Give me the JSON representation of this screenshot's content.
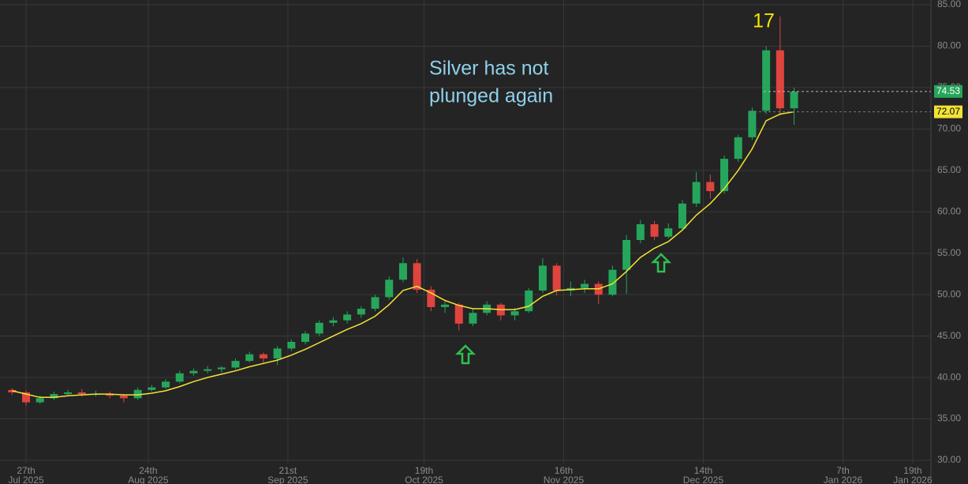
{
  "chart_data": {
    "type": "candlestick",
    "x": [
      -2,
      0,
      2,
      4,
      6,
      8,
      10,
      12,
      14,
      16,
      18,
      20,
      22,
      24,
      26,
      28,
      30,
      32,
      34,
      36,
      38,
      40,
      42,
      44,
      46,
      48,
      50,
      52,
      54,
      56,
      58,
      60,
      62,
      64,
      66,
      68,
      70,
      72,
      74,
      76,
      78,
      80,
      82,
      84,
      86,
      88,
      90,
      92,
      94,
      96,
      98,
      100,
      102,
      104,
      106,
      108,
      110
    ],
    "open": [
      38.5,
      38.2,
      37.0,
      37.5,
      38.0,
      38.2,
      37.9,
      38.0,
      37.8,
      37.5,
      38.5,
      38.8,
      39.5,
      40.5,
      40.8,
      41.0,
      41.2,
      42.0,
      42.8,
      42.3,
      43.5,
      44.3,
      45.3,
      46.6,
      46.9,
      47.6,
      48.3,
      49.7,
      51.8,
      53.8,
      50.6,
      48.5,
      48.8,
      46.5,
      47.8,
      48.8,
      47.5,
      48.0,
      50.5,
      53.5,
      50.5,
      50.8,
      51.3,
      50.0,
      53.0,
      56.6,
      58.5,
      57.0,
      58.0,
      61.0,
      63.6,
      62.5,
      66.4,
      69.0,
      72.2,
      79.5,
      72.5
    ],
    "high": [
      38.7,
      38.4,
      37.8,
      38.3,
      38.5,
      38.6,
      38.4,
      38.3,
      38.0,
      38.8,
      39.1,
      39.8,
      40.8,
      41.1,
      41.4,
      41.4,
      42.3,
      43.1,
      43.0,
      43.8,
      44.6,
      45.6,
      46.9,
      47.3,
      48.0,
      48.6,
      50.0,
      52.2,
      54.5,
      54.3,
      51.0,
      49.2,
      49.0,
      48.2,
      49.2,
      49.0,
      48.4,
      50.8,
      54.4,
      53.8,
      51.6,
      51.8,
      51.6,
      53.5,
      57.2,
      59.0,
      58.9,
      58.6,
      61.4,
      64.8,
      64.5,
      66.8,
      69.3,
      72.6,
      80.0,
      83.6,
      75.0
    ],
    "low": [
      37.9,
      36.6,
      36.8,
      37.3,
      37.8,
      37.7,
      37.7,
      37.5,
      37.0,
      37.3,
      38.3,
      38.6,
      39.3,
      40.2,
      40.5,
      40.6,
      41.0,
      41.8,
      41.6,
      41.5,
      43.2,
      44.0,
      45.0,
      46.2,
      46.5,
      47.2,
      48.0,
      49.4,
      51.5,
      50.2,
      48.0,
      47.8,
      45.7,
      46.2,
      47.5,
      46.9,
      46.9,
      47.8,
      50.2,
      49.9,
      49.8,
      50.2,
      48.9,
      49.8,
      50.1,
      56.2,
      56.6,
      56.8,
      57.8,
      60.6,
      61.6,
      62.2,
      66.0,
      68.7,
      71.8,
      71.6,
      70.5
    ],
    "close": [
      38.2,
      37.0,
      37.5,
      38.0,
      38.2,
      38.0,
      38.0,
      37.8,
      37.5,
      38.5,
      38.8,
      39.5,
      40.5,
      40.8,
      41.0,
      41.2,
      42.0,
      42.8,
      42.3,
      43.5,
      44.3,
      45.3,
      46.6,
      46.9,
      47.6,
      48.3,
      49.7,
      51.8,
      53.8,
      50.6,
      48.5,
      48.8,
      46.5,
      47.8,
      48.8,
      47.5,
      48.0,
      50.5,
      53.5,
      50.5,
      50.8,
      51.3,
      50.0,
      53.0,
      56.6,
      58.5,
      57.0,
      58.0,
      61.0,
      63.6,
      62.5,
      66.4,
      69.0,
      72.2,
      79.5,
      72.5,
      74.5
    ],
    "up_color": "#26a65b",
    "down_color": "#e0443e",
    "moving_average": {
      "color": "#f2e337",
      "values": [
        38.4,
        38.0,
        37.6,
        37.6,
        37.8,
        37.9,
        38.0,
        38.0,
        37.9,
        37.9,
        38.1,
        38.4,
        38.9,
        39.5,
        40.0,
        40.4,
        40.8,
        41.3,
        41.7,
        42.1,
        42.7,
        43.4,
        44.2,
        45.0,
        45.8,
        46.5,
        47.4,
        48.8,
        50.5,
        51.0,
        50.2,
        49.3,
        48.7,
        48.3,
        48.3,
        48.2,
        48.2,
        48.6,
        49.8,
        50.5,
        50.6,
        50.7,
        50.7,
        51.3,
        52.8,
        54.5,
        55.6,
        56.4,
        57.8,
        59.6,
        61.0,
        62.8,
        65.0,
        67.6,
        71.0,
        71.8,
        72.07
      ]
    },
    "last_price": 74.53,
    "ma_last": 72.07,
    "annotation": [
      "Silver has not",
      "plunged again"
    ],
    "peak_label": "17",
    "xlim": [
      -3.73,
      129.6
    ],
    "xticks": [
      {
        "value": 0,
        "label": "27th"
      },
      {
        "value": 17.5,
        "label": "24th"
      },
      {
        "value": 37.5,
        "label": "21st"
      },
      {
        "value": 57,
        "label": "19th"
      },
      {
        "value": 77,
        "label": "16th"
      },
      {
        "value": 97,
        "label": "14th"
      },
      {
        "value": 117,
        "label": "7th"
      },
      {
        "value": 127,
        "label": "19th"
      }
    ],
    "xtick_months": [
      "Jul 2025",
      "Aug 2025",
      "Sep 2025",
      "Oct 2025",
      "Nov 2025",
      "Dec 2025",
      "Jan 2026",
      "Jan 2026"
    ],
    "ylim": [
      30,
      85
    ],
    "yticks": [
      {
        "value": 30,
        "label": "30.00"
      },
      {
        "value": 35,
        "label": "35.00"
      },
      {
        "value": 40,
        "label": "40.00"
      },
      {
        "value": 45,
        "label": "45.00"
      },
      {
        "value": 50,
        "label": "50.00"
      },
      {
        "value": 55,
        "label": "55.00"
      },
      {
        "value": 60,
        "label": "60.00"
      },
      {
        "value": 65,
        "label": "65.00"
      },
      {
        "value": 70,
        "label": "70.00"
      },
      {
        "value": 75,
        "label": "75.00"
      },
      {
        "value": 80,
        "label": "80.00"
      },
      {
        "value": 85,
        "label": "85.00"
      }
    ],
    "grid": true
  }
}
